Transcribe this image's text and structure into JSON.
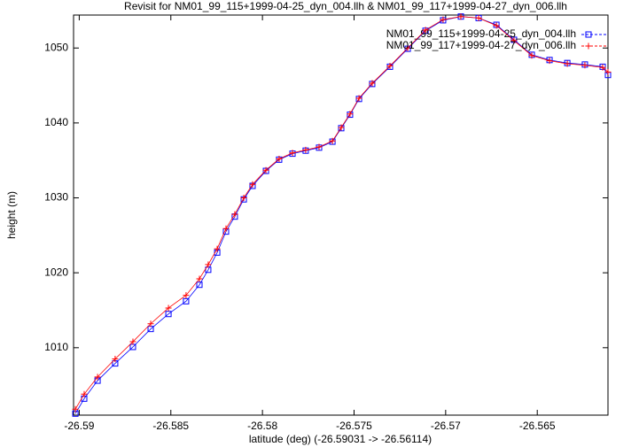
{
  "chart_data": {
    "type": "line",
    "title": "Revisit for NM01_99_115+1999-04-25_dyn_004.llh & NM01_99_117+1999-04-27_dyn_006.llh",
    "x_label": "latitude (deg) (-26.59031 -> -26.56114)",
    "y_label": "height (m)",
    "xlim": [
      -26.59031,
      -26.56114
    ],
    "ylim": [
      1001,
      1054.4
    ],
    "xticks": [
      -26.59,
      -26.585,
      -26.58,
      -26.575,
      -26.57,
      -26.565
    ],
    "yticks": [
      1010,
      1020,
      1030,
      1040,
      1050
    ],
    "legend": "upper right",
    "x": [
      -26.59021,
      -26.58973,
      -26.589,
      -26.58804,
      -26.58707,
      -26.5861,
      -26.58513,
      -26.58417,
      -26.58344,
      -26.58296,
      -26.58247,
      -26.58199,
      -26.58151,
      -26.58102,
      -26.58054,
      -26.57981,
      -26.57909,
      -26.57836,
      -26.57764,
      -26.57691,
      -26.57618,
      -26.5757,
      -26.57522,
      -26.57473,
      -26.57401,
      -26.57304,
      -26.57207,
      -26.5711,
      -26.57014,
      -26.56917,
      -26.5682,
      -26.56723,
      -26.56627,
      -26.5653,
      -26.56433,
      -26.56336,
      -26.5624,
      -26.56143,
      -26.56114
    ],
    "series": [
      {
        "name": "NM01_99_115+1999-04-25_dyn_004.llh",
        "color": "#0000ff",
        "marker": "square",
        "values": [
          1001.2,
          1003.2,
          1005.6,
          1007.9,
          1010.1,
          1012.5,
          1014.5,
          1016.2,
          1018.4,
          1020.4,
          1022.7,
          1025.5,
          1027.5,
          1029.8,
          1031.6,
          1033.6,
          1035.1,
          1035.9,
          1036.3,
          1036.7,
          1037.5,
          1039.3,
          1041.1,
          1043.2,
          1045.2,
          1047.5,
          1049.9,
          1052.3,
          1053.7,
          1054.2,
          1054.0,
          1053.1,
          1051.1,
          1049.1,
          1048.4,
          1048.0,
          1047.8,
          1047.5,
          1046.4
        ]
      },
      {
        "name": "NM01_99_117+1999-04-27_dyn_006.llh",
        "color": "#ff0000",
        "marker": "plus",
        "values": [
          1001.8,
          1003.8,
          1006.1,
          1008.5,
          1010.8,
          1013.2,
          1015.3,
          1017.0,
          1019.2,
          1021.1,
          1023.2,
          1025.9,
          1027.8,
          1030.0,
          1031.8,
          1033.7,
          1035.2,
          1036.0,
          1036.4,
          1036.8,
          1037.6,
          1039.4,
          1041.2,
          1043.3,
          1045.3,
          1047.6,
          1050.0,
          1052.4,
          1053.8,
          1054.2,
          1054.0,
          1053.0,
          1051.0,
          1049.0,
          1048.3,
          1047.9,
          1047.7,
          1047.4,
          1046.8
        ]
      }
    ]
  }
}
